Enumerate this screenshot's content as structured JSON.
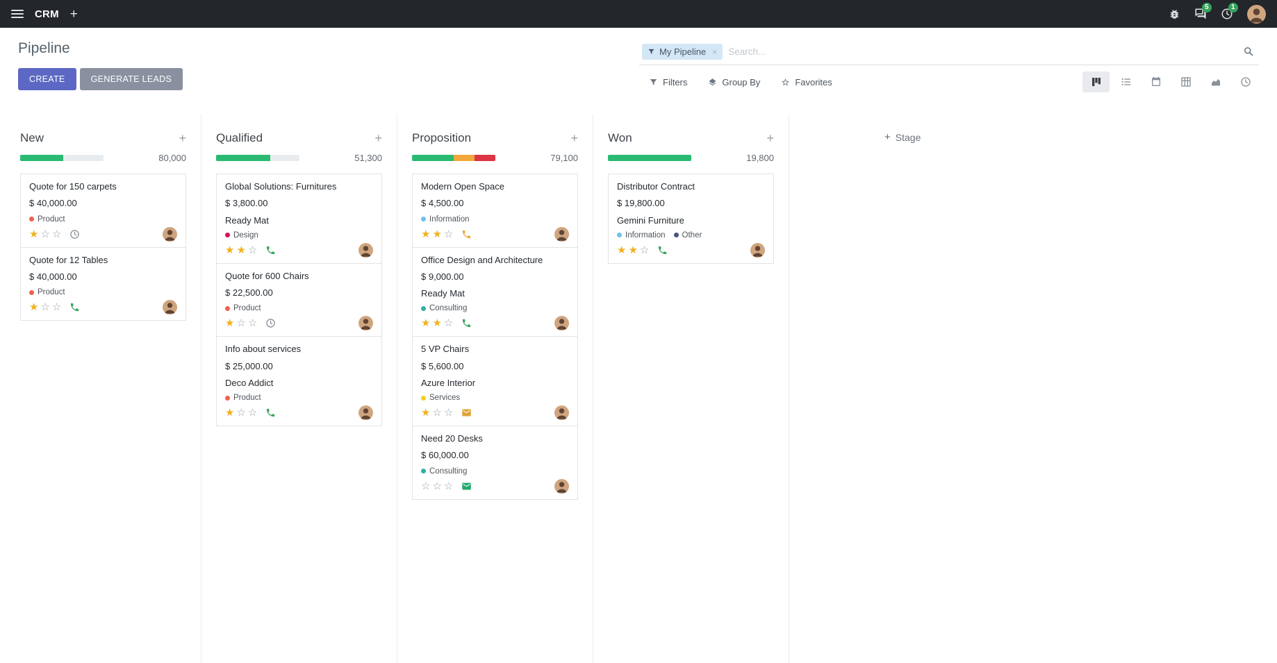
{
  "icons": {
    "plus": "+",
    "star_filled": "★",
    "star_empty": "☆",
    "facet_remove": "×"
  },
  "topbar": {
    "app_name": "CRM",
    "messages_badge": "5",
    "activities_badge": "1"
  },
  "control_panel": {
    "breadcrumb": "Pipeline",
    "buttons": {
      "create": "CREATE",
      "generate_leads": "GENERATE LEADS"
    },
    "search": {
      "facet_label": "My Pipeline",
      "placeholder": "Search..."
    },
    "search_options": {
      "filters": "Filters",
      "group_by": "Group By",
      "favorites": "Favorites"
    },
    "view_switcher": [
      "kanban",
      "list",
      "calendar",
      "pivot",
      "graph",
      "activity"
    ]
  },
  "kanban": {
    "add_stage_label": "Stage",
    "columns": [
      {
        "name": "New",
        "count": "80,000",
        "progress": [
          {
            "color": "#2aba72",
            "pct": 52
          }
        ],
        "cards": [
          {
            "title": "Quote for 150 carpets",
            "amount": "$ 40,000.00",
            "tags": [
              {
                "label": "Product",
                "color": "#f06050"
              }
            ],
            "stars": 1,
            "activity": {
              "type": "clock",
              "color": "#848b92"
            }
          },
          {
            "title": "Quote for 12 Tables",
            "amount": "$ 40,000.00",
            "tags": [
              {
                "label": "Product",
                "color": "#f06050"
              }
            ],
            "stars": 1,
            "activity": {
              "type": "phone",
              "color": "#3aa55f"
            }
          }
        ]
      },
      {
        "name": "Qualified",
        "count": "51,300",
        "progress": [
          {
            "color": "#2aba72",
            "pct": 65
          }
        ],
        "cards": [
          {
            "title": "Global Solutions: Furnitures",
            "amount": "$ 3,800.00",
            "partner": "Ready Mat",
            "tags": [
              {
                "label": "Design",
                "color": "#d6145f"
              }
            ],
            "stars": 2,
            "activity": {
              "type": "phone",
              "color": "#3aa55f"
            }
          },
          {
            "title": "Quote for 600 Chairs",
            "amount": "$ 22,500.00",
            "tags": [
              {
                "label": "Product",
                "color": "#f06050"
              }
            ],
            "stars": 1,
            "activity": {
              "type": "clock",
              "color": "#848b92"
            }
          },
          {
            "title": "Info about services",
            "amount": "$ 25,000.00",
            "partner": "Deco Addict",
            "tags": [
              {
                "label": "Product",
                "color": "#f06050"
              }
            ],
            "stars": 1,
            "activity": {
              "type": "phone",
              "color": "#3aa55f"
            }
          }
        ]
      },
      {
        "name": "Proposition",
        "count": "79,100",
        "progress": [
          {
            "color": "#2aba72",
            "pct": 50
          },
          {
            "color": "#f2a63b",
            "pct": 25
          },
          {
            "color": "#dc3545",
            "pct": 25
          }
        ],
        "cards": [
          {
            "title": "Modern Open Space",
            "amount": "$ 4,500.00",
            "tags": [
              {
                "label": "Information",
                "color": "#6cc1ed"
              }
            ],
            "stars": 2,
            "activity": {
              "type": "phone",
              "color": "#f0a43c"
            }
          },
          {
            "title": "Office Design and Architecture",
            "amount": "$ 9,000.00",
            "partner": "Ready Mat",
            "tags": [
              {
                "label": "Consulting",
                "color": "#2fb0a5"
              }
            ],
            "stars": 2,
            "activity": {
              "type": "phone",
              "color": "#3aa55f"
            }
          },
          {
            "title": "5 VP Chairs",
            "amount": "$ 5,600.00",
            "partner": "Azure Interior",
            "tags": [
              {
                "label": "Services",
                "color": "#f7cd1f"
              }
            ],
            "stars": 1,
            "activity": {
              "type": "envelope",
              "color": "#e0a33a"
            }
          },
          {
            "title": "Need 20 Desks",
            "amount": "$ 60,000.00",
            "tags": [
              {
                "label": "Consulting",
                "color": "#2fb0a5"
              }
            ],
            "stars": 0,
            "activity": {
              "type": "envelope",
              "color": "#23a96d"
            }
          }
        ]
      },
      {
        "name": "Won",
        "count": "19,800",
        "progress": [
          {
            "color": "#2aba72",
            "pct": 100
          }
        ],
        "cards": [
          {
            "title": "Distributor Contract",
            "amount": "$ 19,800.00",
            "partner": "Gemini Furniture",
            "tags": [
              {
                "label": "Information",
                "color": "#6cc1ed"
              },
              {
                "label": "Other",
                "color": "#475577"
              }
            ],
            "stars": 2,
            "activity": {
              "type": "phone",
              "color": "#3aa55f"
            }
          }
        ]
      }
    ]
  }
}
